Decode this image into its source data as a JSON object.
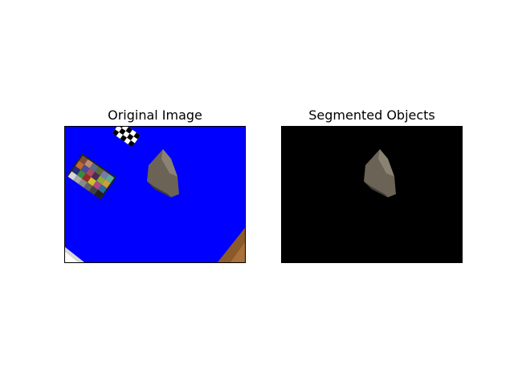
{
  "figure": {
    "panels": [
      {
        "title": "Original Image",
        "background": "#0000ff"
      },
      {
        "title": "Segmented Objects",
        "background": "#000000"
      }
    ]
  },
  "colors": {
    "table_blue": "#0000ff",
    "mask_black": "#000000",
    "object_gray": "#6b6356",
    "wood_brown": "#8b5a2b"
  },
  "icons": [
    "color-checker-card",
    "checkerboard-target",
    "stone-object"
  ]
}
